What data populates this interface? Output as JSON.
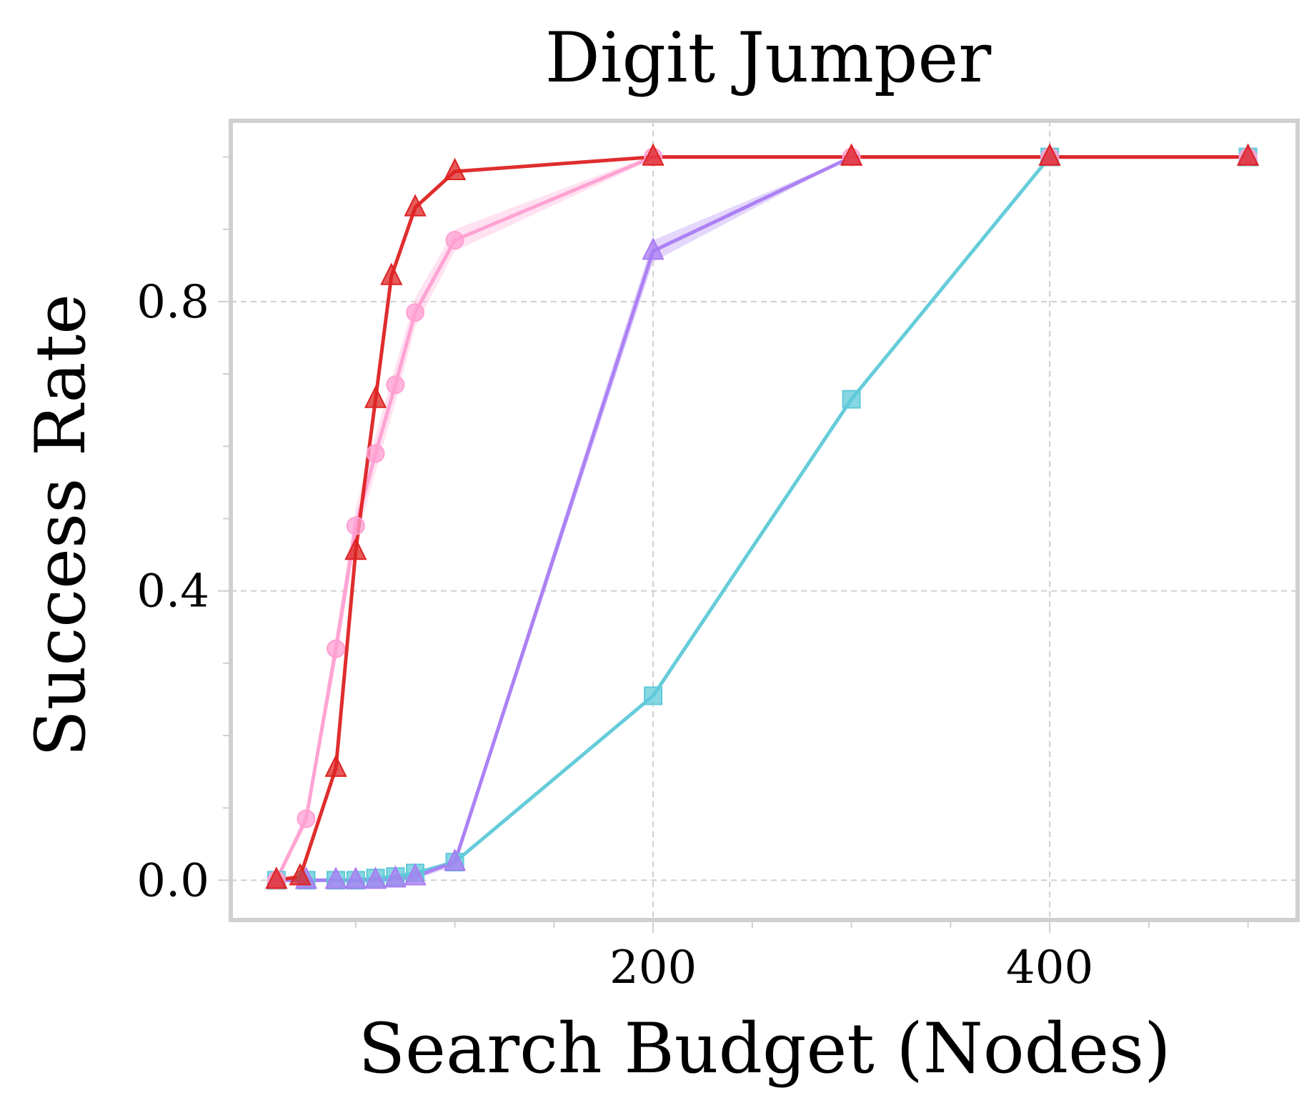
{
  "chart_data": {
    "type": "line",
    "title": "Digit Jumper",
    "xlabel": "Search Budget (Nodes)",
    "ylabel": "Success Rate",
    "xlim": [
      -13,
      525
    ],
    "ylim": [
      -0.055,
      1.05
    ],
    "x_ticks": [
      200,
      400
    ],
    "y_ticks": [
      0.0,
      0.4,
      0.8
    ],
    "x_minor_ticks": [
      50,
      100,
      150,
      250,
      300,
      350,
      450,
      500
    ],
    "y_minor_ticks": [
      0.1,
      0.2,
      0.3,
      0.5,
      0.6,
      0.7,
      0.9,
      1.0
    ],
    "grid": true,
    "legend": "none",
    "series": [
      {
        "color": "#5ec9d8",
        "marker": "square",
        "x": [
          10,
          25,
          40,
          50,
          60,
          70,
          80,
          100,
          200,
          300,
          400,
          500
        ],
        "y": [
          0.0,
          0.0,
          0.0,
          0.0,
          0.003,
          0.005,
          0.01,
          0.025,
          0.255,
          0.665,
          1.0,
          1.0
        ]
      },
      {
        "color": "#a97cf3",
        "marker": "triangle",
        "x": [
          10,
          25,
          40,
          50,
          60,
          70,
          80,
          100,
          200,
          300,
          400,
          500
        ],
        "y": [
          0.0,
          0.0,
          0.0,
          0.0,
          0.0,
          0.002,
          0.005,
          0.025,
          0.87,
          1.0,
          1.0,
          1.0
        ],
        "band": [
          0.0,
          0.0,
          0.0,
          0.0,
          0.0,
          0.002,
          0.004,
          0.005,
          0.015,
          0.0,
          0.0,
          0.0
        ]
      },
      {
        "color": "#ff9fd2",
        "marker": "circle",
        "x": [
          10,
          25,
          40,
          50,
          60,
          70,
          80,
          100,
          200,
          300,
          400,
          500
        ],
        "y": [
          0.0,
          0.085,
          0.32,
          0.49,
          0.59,
          0.685,
          0.785,
          0.885,
          1.0,
          1.0,
          1.0,
          1.0
        ],
        "band": [
          0.0,
          0.01,
          0.02,
          0.025,
          0.025,
          0.025,
          0.02,
          0.015,
          0.003,
          0.0,
          0.0,
          0.0
        ]
      },
      {
        "color": "#dd2222",
        "marker": "triangle",
        "x": [
          10,
          22,
          40,
          50,
          60,
          68,
          80,
          100,
          200,
          300,
          400,
          500
        ],
        "y": [
          0.0,
          0.005,
          0.155,
          0.455,
          0.665,
          0.835,
          0.93,
          0.98,
          1.0,
          1.0,
          1.0,
          1.0
        ]
      }
    ]
  }
}
